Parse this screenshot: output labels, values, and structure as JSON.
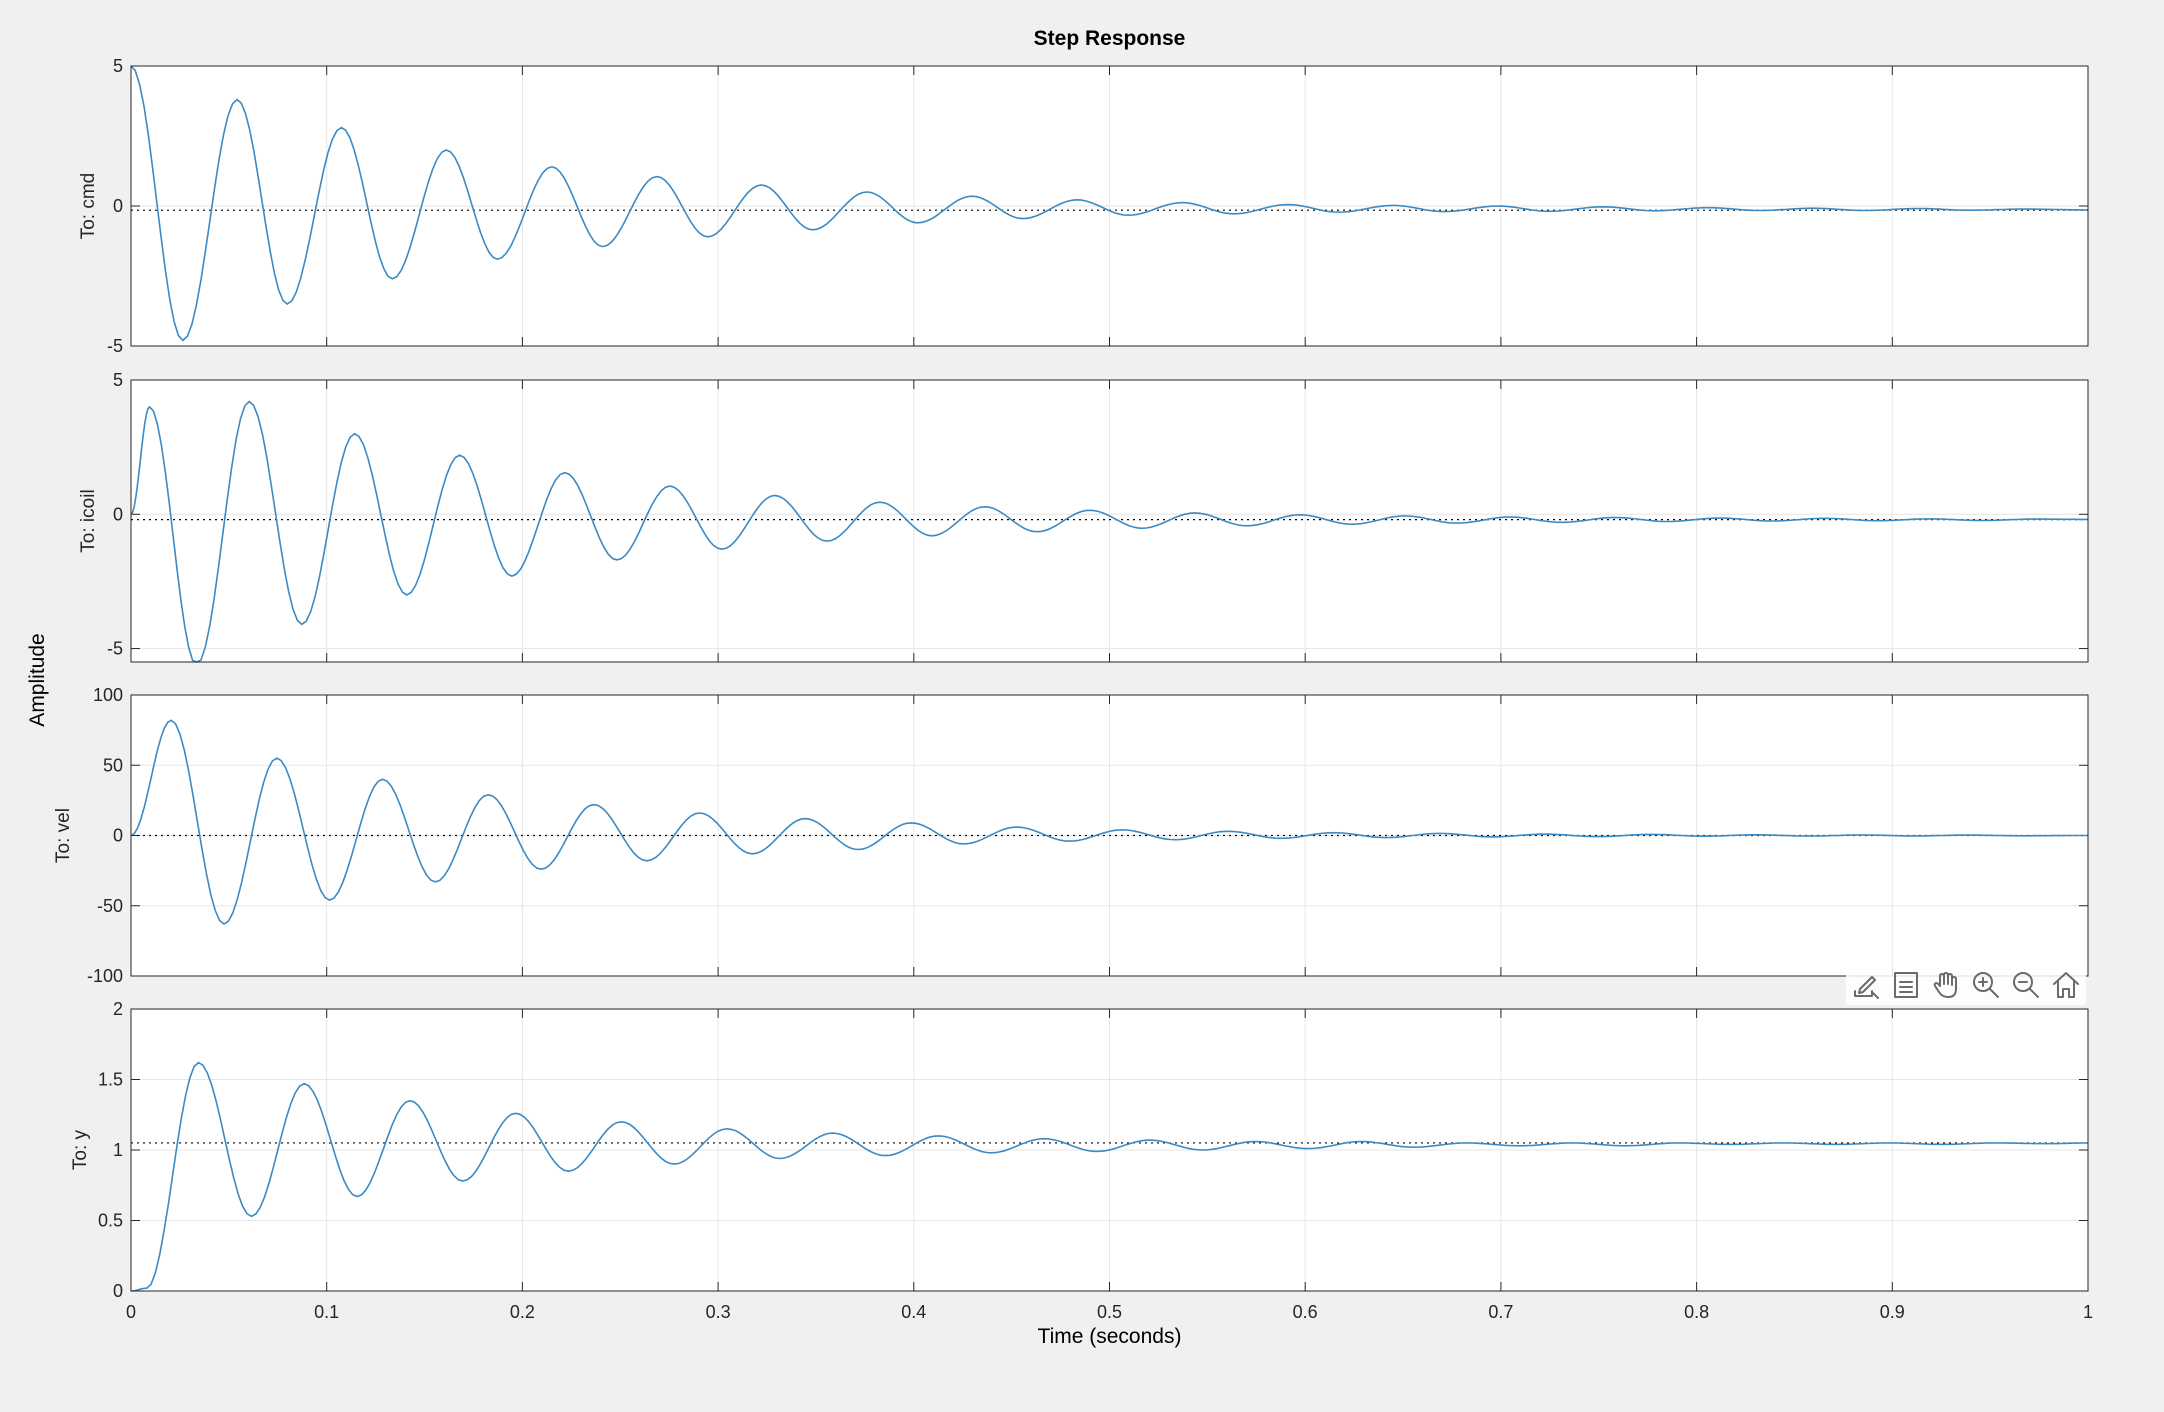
{
  "toolbar": {
    "icons": [
      "data-tips-brush-icon",
      "insert-legend-icon",
      "pan-hand-icon",
      "zoom-in-icon",
      "zoom-out-icon",
      "restore-view-home-icon"
    ]
  },
  "chart_data": {
    "type": "line",
    "title": "Step Response",
    "xlabel": "Time (seconds)",
    "ylabel": "Amplitude",
    "grid": true,
    "line_color": "#3b8ac4",
    "steady_line_color": "#000000",
    "xlim": [
      0,
      1
    ],
    "x_ticks": [
      0,
      0.1,
      0.2,
      0.3,
      0.4,
      0.5,
      0.6,
      0.7,
      0.8,
      0.9,
      1
    ],
    "x_tick_labels": [
      "0",
      "0.1",
      "0.2",
      "0.3",
      "0.4",
      "0.5",
      "0.6",
      "0.7",
      "0.8",
      "0.9",
      "1"
    ],
    "subplots": [
      {
        "ylabel": "To: cmd",
        "ylim": [
          -5,
          5
        ],
        "y_ticks": [
          -5,
          0,
          5
        ],
        "y_tick_labels": [
          "-5",
          "0",
          "5"
        ],
        "steady_state": -0.15,
        "series": [
          {
            "x": [
              0,
              0.0265,
              0.0542,
              0.0798,
              0.1075,
              0.1335,
              0.1611,
              0.1872,
              0.215,
              0.241,
              0.2687,
              0.2947,
              0.3221,
              0.3483,
              0.376,
              0.402,
              0.4297,
              0.4557,
              0.4834,
              0.5095,
              0.5372,
              0.5635,
              0.591,
              0.6172,
              0.6449,
              0.671,
              0.6986,
              0.7245,
              0.7522,
              0.7784,
              0.806,
              0.8321,
              0.8596,
              0.8858,
              0.9133,
              0.9395,
              0.9671,
              1.0
            ],
            "y": [
              5.0,
              -4.8,
              3.8,
              -3.5,
              2.8,
              -2.6,
              2.0,
              -1.9,
              1.4,
              -1.45,
              1.05,
              -1.1,
              0.75,
              -0.85,
              0.5,
              -0.6,
              0.35,
              -0.45,
              0.22,
              -0.33,
              0.12,
              -0.28,
              0.05,
              -0.22,
              0.02,
              -0.2,
              0.0,
              -0.19,
              -0.03,
              -0.17,
              -0.06,
              -0.16,
              -0.08,
              -0.16,
              -0.09,
              -0.15,
              -0.11,
              -0.14
            ]
          }
        ]
      },
      {
        "ylabel": "To: icoil",
        "ylim": [
          -5.5,
          5
        ],
        "y_ticks": [
          -5,
          0
        ],
        "y_tick_labels": [
          "-5",
          "0"
        ],
        "extra_tick_labels": [
          {
            "value": 5,
            "label": "5"
          }
        ],
        "steady_state": -0.2,
        "series": [
          {
            "x": [
              0,
              0.0095,
              0.0335,
              0.0604,
              0.0873,
              0.1143,
              0.1409,
              0.1679,
              0.1946,
              0.2216,
              0.2483,
              0.2753,
              0.3019,
              0.3289,
              0.3556,
              0.3826,
              0.4092,
              0.4362,
              0.4629,
              0.4899,
              0.5166,
              0.5435,
              0.5702,
              0.5972,
              0.6239,
              0.6509,
              0.6775,
              0.7045,
              0.7312,
              0.7582,
              0.7849,
              0.8118,
              0.8385,
              0.8655,
              0.8922,
              0.9192,
              0.9458,
              0.9728,
              1.0
            ],
            "y": [
              0,
              4.0,
              -5.6,
              4.2,
              -4.1,
              3.0,
              -3.0,
              2.2,
              -2.3,
              1.55,
              -1.7,
              1.05,
              -1.3,
              0.7,
              -1.0,
              0.45,
              -0.8,
              0.28,
              -0.65,
              0.15,
              -0.52,
              0.05,
              -0.43,
              -0.02,
              -0.37,
              -0.06,
              -0.33,
              -0.1,
              -0.3,
              -0.12,
              -0.27,
              -0.14,
              -0.25,
              -0.15,
              -0.24,
              -0.17,
              -0.23,
              -0.18,
              -0.19
            ]
          }
        ]
      },
      {
        "ylabel": "To: vel",
        "ylim": [
          -100,
          100
        ],
        "y_ticks": [
          -100,
          -50,
          0,
          50,
          100
        ],
        "y_tick_labels": [
          "-100",
          "-50",
          "0",
          "50",
          "100"
        ],
        "steady_state": 0,
        "series": [
          {
            "x": [
              0,
              0.0205,
              0.0475,
              0.0745,
              0.1015,
              0.1285,
              0.1555,
              0.1825,
              0.2095,
              0.2365,
              0.2635,
              0.2905,
              0.3175,
              0.3445,
              0.3715,
              0.3985,
              0.4255,
              0.4525,
              0.4795,
              0.5065,
              0.5335,
              0.5605,
              0.5875,
              0.6145,
              0.6415,
              0.6685,
              0.6955,
              0.7225,
              0.7495,
              0.7765,
              0.8035,
              0.8305,
              0.8575,
              0.8845,
              0.9115,
              0.9385,
              0.9655,
              1.0
            ],
            "y": [
              0,
              82,
              -63,
              55,
              -46,
              40,
              -33,
              29,
              -24,
              22,
              -18,
              16,
              -13,
              12,
              -10,
              9,
              -6,
              6,
              -4,
              4,
              -3,
              3,
              -2,
              2,
              -1.5,
              1.5,
              -1,
              1,
              -0.8,
              0.8,
              -0.5,
              0.5,
              -0.4,
              0.4,
              -0.3,
              0.3,
              -0.2,
              0
            ]
          }
        ]
      },
      {
        "ylabel": "To: y",
        "ylim": [
          0,
          2
        ],
        "y_ticks": [
          0,
          0.5,
          1,
          1.5,
          2
        ],
        "y_tick_labels": [
          "0",
          "0.5",
          "1",
          "1.5",
          "2"
        ],
        "steady_state": 1.05,
        "series": [
          {
            "x": [
              0,
              0.008,
              0.0345,
              0.0615,
              0.0885,
              0.1155,
              0.1425,
              0.1695,
              0.1965,
              0.2235,
              0.2505,
              0.2775,
              0.3045,
              0.3315,
              0.3585,
              0.3855,
              0.4125,
              0.4395,
              0.4665,
              0.4935,
              0.5205,
              0.5475,
              0.5745,
              0.6015,
              0.6285,
              0.6555,
              0.6825,
              0.7095,
              0.7365,
              0.7635,
              0.7905,
              0.8175,
              0.8445,
              0.8715,
              0.8985,
              0.9255,
              0.9525,
              0.9795,
              1.0
            ],
            "y": [
              0,
              0.02,
              1.62,
              0.53,
              1.47,
              0.67,
              1.35,
              0.78,
              1.26,
              0.85,
              1.2,
              0.9,
              1.15,
              0.94,
              1.12,
              0.96,
              1.1,
              0.98,
              1.08,
              0.99,
              1.07,
              1.0,
              1.06,
              1.01,
              1.06,
              1.02,
              1.05,
              1.03,
              1.05,
              1.03,
              1.05,
              1.04,
              1.05,
              1.04,
              1.05,
              1.04,
              1.05,
              1.045,
              1.05
            ]
          }
        ]
      }
    ]
  }
}
